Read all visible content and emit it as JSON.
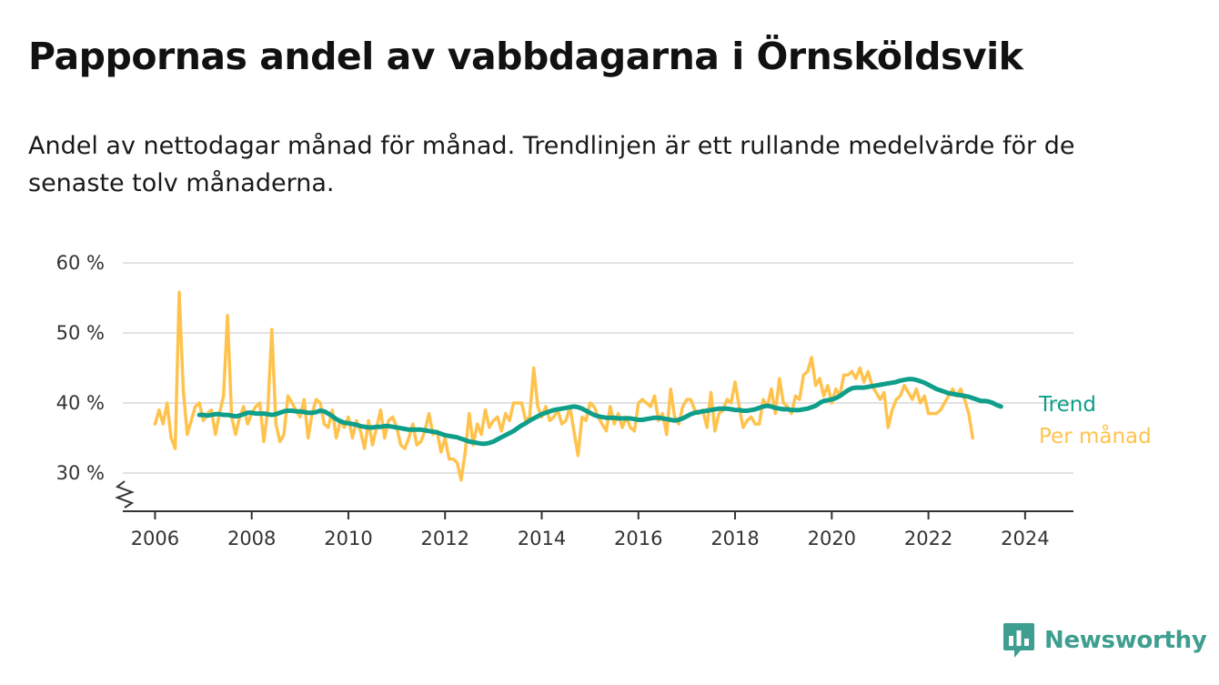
{
  "header": {
    "title": "Pappornas andel av vabbdagarna i Örnsköldsvik",
    "subtitle": "Andel av nettodagar månad för månad. Trendlinjen är ett rullande medelvärde för de senaste tolv månaderna."
  },
  "brand": {
    "name": "Newsworthy",
    "color": "#3e9e8f"
  },
  "colors": {
    "monthly": "#ffc34d",
    "trend": "#0e9e8a",
    "grid": "#d9d9d9",
    "axis": "#333333"
  },
  "chart_data": {
    "type": "line",
    "title": "Pappornas andel av vabbdagarna i Örnsköldsvik",
    "xlabel": "",
    "ylabel": "",
    "xlim": [
      "2005-05",
      "2025-01"
    ],
    "ylim": [
      25,
      60
    ],
    "y_broken_axis": true,
    "y_ticks": [
      30,
      40,
      50,
      60
    ],
    "y_tick_labels": [
      "30 %",
      "40 %",
      "50 %",
      "60 %"
    ],
    "x_ticks": [
      "2006-01",
      "2008-01",
      "2010-01",
      "2012-01",
      "2014-01",
      "2016-01",
      "2018-01",
      "2020-01",
      "2022-01",
      "2024-01"
    ],
    "x_tick_labels": [
      "2006",
      "2008",
      "2010",
      "2012",
      "2014",
      "2016",
      "2018",
      "2020",
      "2022",
      "2024"
    ],
    "grid": "horizontal",
    "legend": "direct labels at line ends",
    "series": [
      {
        "name": "Per månad",
        "color": "#ffc34d",
        "x_start": "2006-01",
        "values": [
          37,
          39,
          37,
          40,
          35,
          33.5,
          55.8,
          42,
          35.5,
          37.5,
          39.5,
          40,
          37.5,
          38.5,
          39,
          35.5,
          38.5,
          41,
          52.5,
          38,
          35.5,
          38,
          39.5,
          37,
          38.5,
          39.5,
          40,
          34.5,
          39,
          50.5,
          37,
          34.5,
          35.5,
          41,
          40,
          39,
          38,
          40.5,
          35,
          38.5,
          40.5,
          40,
          37,
          36.5,
          39,
          35,
          37.5,
          36.5,
          38,
          35,
          37.5,
          36,
          33.5,
          37.5,
          34,
          36.5,
          39,
          35,
          37.5,
          38,
          36.5,
          34,
          33.5,
          35,
          37,
          34,
          34.5,
          36,
          38.5,
          35.5,
          36,
          33,
          35,
          32,
          32,
          31.5,
          29,
          33,
          38.5,
          34,
          37,
          35.5,
          39,
          36.5,
          37.5,
          38,
          36,
          38.5,
          37.5,
          40,
          40,
          40,
          37.5,
          38,
          45,
          39.5,
          38,
          39.5,
          37.5,
          38,
          39,
          37,
          37.5,
          39.5,
          36,
          32.5,
          38,
          37.5,
          40,
          39.5,
          38,
          37,
          36,
          39.5,
          37,
          38.5,
          36.5,
          38,
          36.5,
          36,
          40,
          40.5,
          40,
          39.5,
          41,
          37.5,
          38.5,
          35.5,
          42,
          38,
          37,
          39.5,
          40.5,
          40.5,
          39,
          38.5,
          39,
          36.5,
          41.5,
          36,
          38.5,
          39,
          40.5,
          40,
          43,
          39.5,
          36.5,
          37.5,
          38,
          37,
          37,
          40.5,
          39.5,
          42,
          38.5,
          43.5,
          40,
          39.5,
          38.5,
          41,
          40.5,
          44,
          44.5,
          46.5,
          42.5,
          43.5,
          41,
          42.5,
          40,
          42,
          41,
          44,
          44,
          44.5,
          43.5,
          45,
          43,
          44.5,
          42.5,
          41.5,
          40.5,
          41.5,
          36.5,
          39,
          40.5,
          41,
          42.5,
          41.5,
          40.5,
          42,
          40,
          41,
          38.5,
          38.5,
          38.5,
          39,
          40,
          41,
          42,
          41,
          42,
          40.5,
          38.5,
          35
        ]
      },
      {
        "name": "Trend",
        "color": "#0e9e8a",
        "x_start": "2006-12",
        "values": [
          38.3,
          38.3,
          38.2,
          38.3,
          38.4,
          38.4,
          38.3,
          38.3,
          38.2,
          38.1,
          38.2,
          38.4,
          38.6,
          38.6,
          38.5,
          38.5,
          38.5,
          38.4,
          38.3,
          38.4,
          38.6,
          38.8,
          38.9,
          38.9,
          38.8,
          38.8,
          38.7,
          38.6,
          38.6,
          38.7,
          38.9,
          38.8,
          38.5,
          38.1,
          37.7,
          37.4,
          37.2,
          37.1,
          37.0,
          36.9,
          36.7,
          36.6,
          36.5,
          36.5,
          36.6,
          36.6,
          36.7,
          36.7,
          36.6,
          36.5,
          36.4,
          36.3,
          36.2,
          36.2,
          36.2,
          36.2,
          36.1,
          36.0,
          35.9,
          35.8,
          35.6,
          35.4,
          35.3,
          35.2,
          35.1,
          34.9,
          34.7,
          34.5,
          34.4,
          34.3,
          34.2,
          34.2,
          34.3,
          34.5,
          34.8,
          35.1,
          35.4,
          35.7,
          36.0,
          36.4,
          36.8,
          37.1,
          37.5,
          37.8,
          38.1,
          38.4,
          38.6,
          38.8,
          39.0,
          39.1,
          39.2,
          39.3,
          39.4,
          39.5,
          39.4,
          39.2,
          38.9,
          38.6,
          38.3,
          38.1,
          38.0,
          37.9,
          37.9,
          37.9,
          37.8,
          37.8,
          37.8,
          37.8,
          37.7,
          37.6,
          37.6,
          37.7,
          37.8,
          37.9,
          37.9,
          37.8,
          37.7,
          37.6,
          37.5,
          37.6,
          37.8,
          38.1,
          38.4,
          38.6,
          38.7,
          38.8,
          38.9,
          39.0,
          39.1,
          39.2,
          39.2,
          39.2,
          39.1,
          39.0,
          39.0,
          38.9,
          38.9,
          39.0,
          39.1,
          39.3,
          39.5,
          39.6,
          39.5,
          39.3,
          39.2,
          39.1,
          39.1,
          39.0,
          39.0,
          39.0,
          39.1,
          39.2,
          39.4,
          39.6,
          40.0,
          40.3,
          40.4,
          40.5,
          40.7,
          41.0,
          41.4,
          41.8,
          42.1,
          42.2,
          42.2,
          42.2,
          42.3,
          42.4,
          42.5,
          42.6,
          42.7,
          42.8,
          42.9,
          43.0,
          43.2,
          43.3,
          43.4,
          43.4,
          43.3,
          43.1,
          42.9,
          42.6,
          42.3,
          42.0,
          41.8,
          41.6,
          41.4,
          41.3,
          41.2,
          41.1,
          41.0,
          40.9,
          40.7,
          40.5,
          40.3,
          40.3,
          40.2,
          40.0,
          39.7,
          39.5
        ]
      }
    ]
  }
}
